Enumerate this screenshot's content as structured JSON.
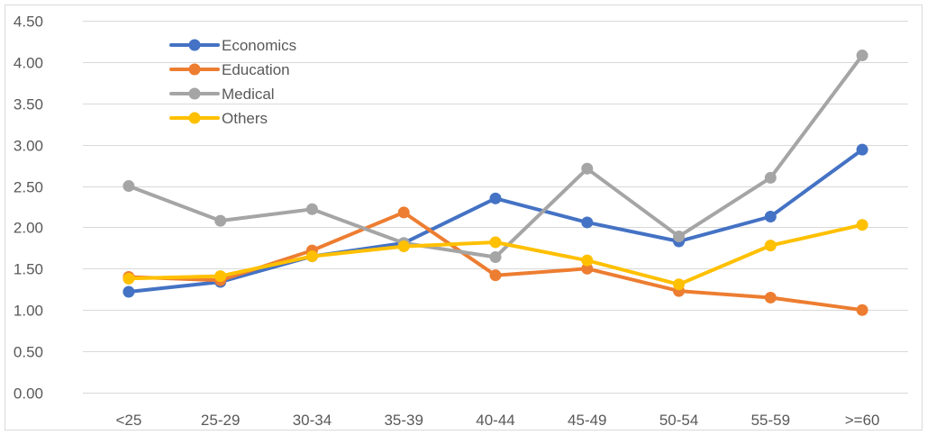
{
  "chart_data": {
    "type": "line",
    "title": "",
    "xlabel": "",
    "ylabel": "",
    "categories": [
      "<25",
      "25-29",
      "30-34",
      "35-39",
      "40-44",
      "45-49",
      "50-54",
      "55-59",
      ">=60"
    ],
    "ylim": [
      0,
      4.5
    ],
    "ytick_step": 0.5,
    "ytick_labels": [
      "0.00",
      "0.50",
      "1.00",
      "1.50",
      "2.00",
      "2.50",
      "3.00",
      "3.50",
      "4.00",
      "4.50"
    ],
    "grid": true,
    "legend_position": "top-left",
    "series": [
      {
        "name": "Economics",
        "color": "#4472C4",
        "values": [
          1.22,
          1.34,
          1.65,
          1.81,
          2.35,
          2.06,
          1.83,
          2.13,
          2.94
        ]
      },
      {
        "name": "Education",
        "color": "#ED7D31",
        "values": [
          1.4,
          1.36,
          1.72,
          2.18,
          1.42,
          1.5,
          1.23,
          1.15,
          1.0
        ]
      },
      {
        "name": "Medical",
        "color": "#A5A5A5",
        "values": [
          2.5,
          2.08,
          2.22,
          1.81,
          1.64,
          2.71,
          1.89,
          2.6,
          4.08
        ]
      },
      {
        "name": "Others",
        "color": "#FFC000",
        "values": [
          1.38,
          1.41,
          1.65,
          1.77,
          1.82,
          1.6,
          1.31,
          1.78,
          2.03
        ]
      }
    ]
  }
}
